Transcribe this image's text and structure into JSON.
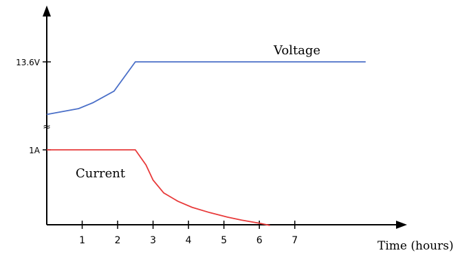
{
  "chart_data": {
    "type": "line",
    "title": "",
    "xlabel": "Time (hours)",
    "ylabel": "",
    "x_ticks": [
      "1",
      "2",
      "3",
      "4",
      "5",
      "6",
      "7"
    ],
    "y_labels": {
      "voltage_level": "13.6V",
      "current_level": "1A",
      "break_symbol": "≈"
    },
    "xlim": [
      0,
      11.1
    ],
    "grid": false,
    "legend": "none",
    "series": [
      {
        "name": "Voltage",
        "color": "#4a6fc8",
        "unit_note": "normalized: 1 = 13.6V",
        "x": [
          0,
          0.9,
          1.3,
          1.9,
          2.5
        ],
        "y": [
          0.55,
          0.6,
          0.65,
          0.75,
          1.0
        ],
        "x_end": 9.0
      },
      {
        "name": "Current",
        "color": "#e83a3a",
        "unit_note": "normalized: 1 = 1A",
        "x": [
          0,
          2.5,
          2.8,
          3.0,
          3.3,
          3.7,
          4.1,
          4.6,
          5.1,
          5.5,
          6.0,
          6.3
        ],
        "y": [
          1.0,
          1.0,
          0.8,
          0.6,
          0.43,
          0.32,
          0.24,
          0.17,
          0.11,
          0.07,
          0.03,
          0.0
        ]
      }
    ]
  }
}
